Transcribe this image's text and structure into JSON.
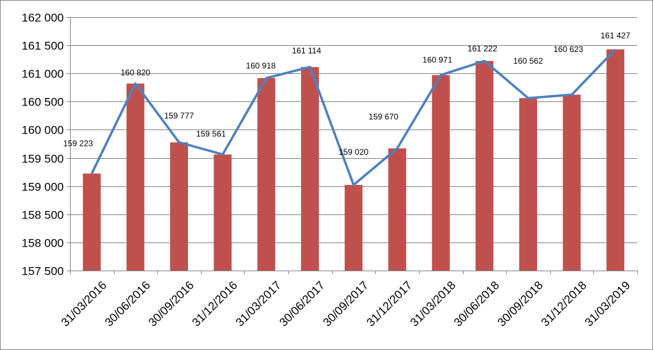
{
  "chart_data": {
    "type": "bar",
    "categories": [
      "31/03/2016",
      "30/06/2016",
      "30/09/2016",
      "31/12/2016",
      "31/03/2017",
      "30/06/2017",
      "30/09/2017",
      "31/12/2017",
      "31/03/2018",
      "30/06/2018",
      "30/09/2018",
      "31/12/2018",
      "31/03/2019"
    ],
    "values": [
      159223,
      160820,
      159777,
      159561,
      160918,
      161114,
      159020,
      159670,
      160971,
      161222,
      160562,
      160623,
      161427
    ],
    "data_labels": [
      "159 223",
      "160 820",
      "159 777",
      "159 561",
      "160 918",
      "161 114",
      "159 020",
      "159 670",
      "160 971",
      "161 222",
      "160 562",
      "160 623",
      "161 427"
    ],
    "overlay_line": {
      "type": "line",
      "values": [
        159223,
        160820,
        159777,
        159561,
        160918,
        161114,
        159020,
        159670,
        160971,
        161222,
        160562,
        160623,
        161427
      ]
    },
    "ylim": [
      157500,
      162000
    ],
    "yticks": [
      157500,
      158000,
      158500,
      159000,
      159500,
      160000,
      160500,
      161000,
      161500,
      162000
    ],
    "ytick_labels": [
      "157 500",
      "158 000",
      "158 500",
      "159 000",
      "159 500",
      "160 000",
      "160 500",
      "161 000",
      "161 500",
      "162 000"
    ],
    "title": "",
    "xlabel": "",
    "ylabel": "",
    "grid": "horizontal",
    "legend": "none",
    "colors": {
      "bar": "#c0504d",
      "line": "#4f81bd",
      "grid": "#868686",
      "axis": "#868686"
    }
  }
}
